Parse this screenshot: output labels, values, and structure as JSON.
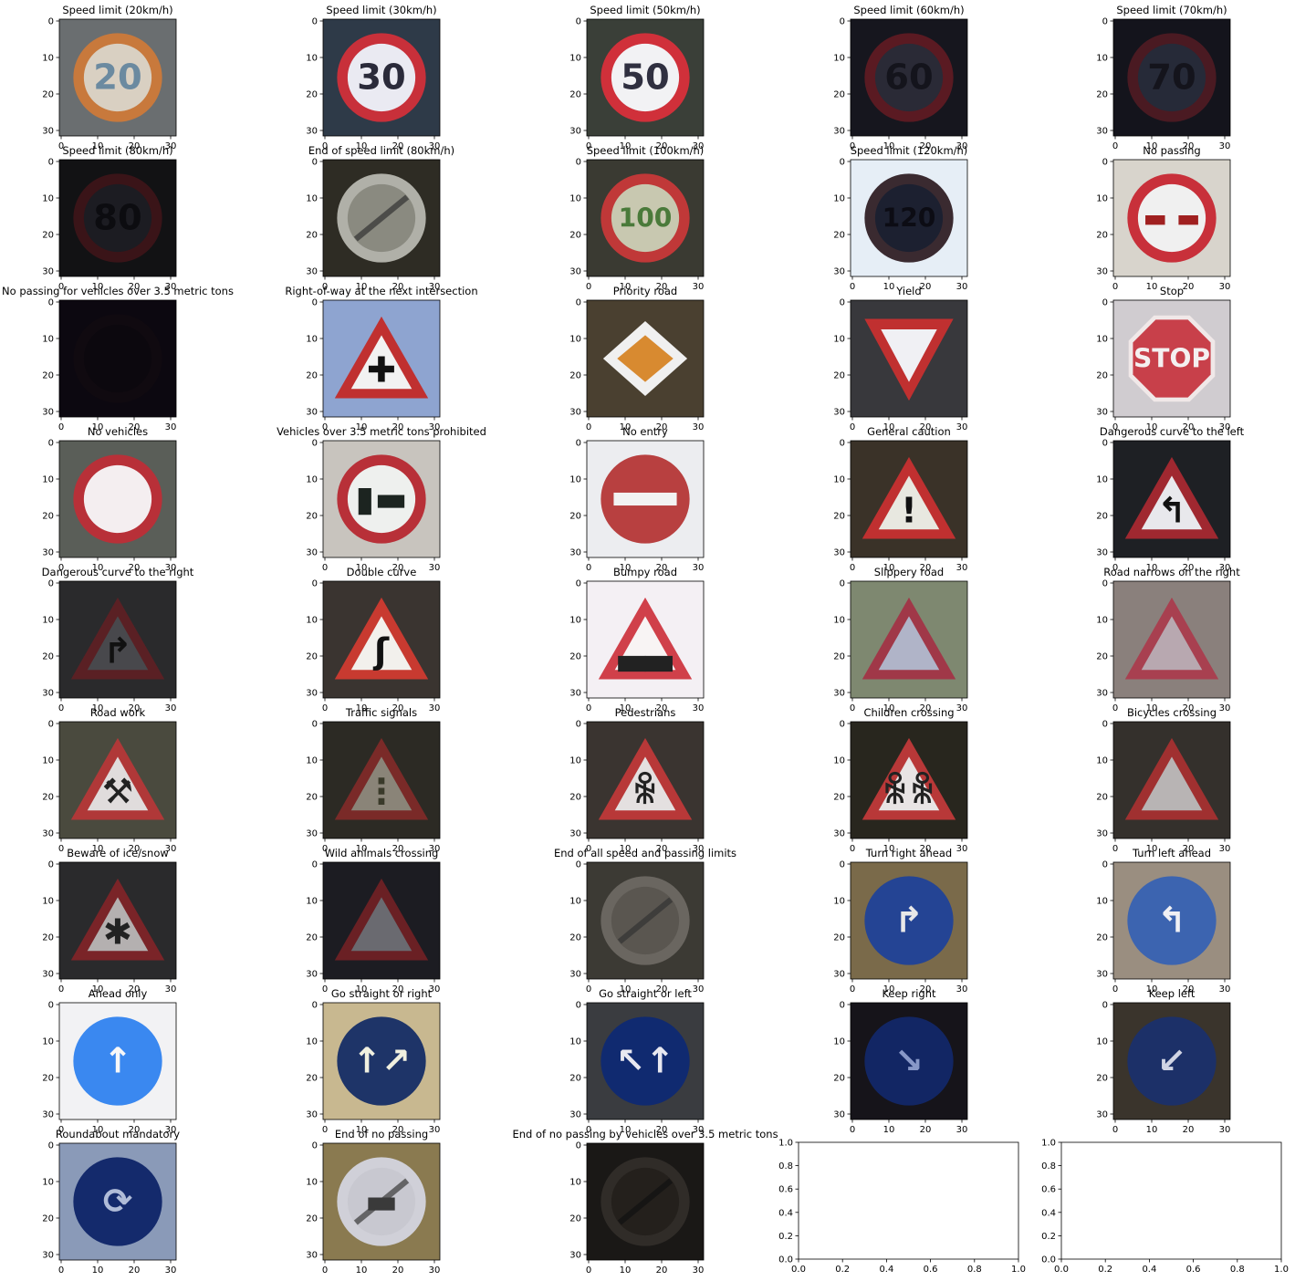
{
  "figure": {
    "type": "image_grid",
    "rows": 9,
    "cols": 5
  },
  "chart_data": {
    "type": "image_grid",
    "image_axis": {
      "x_ticks": [
        0,
        10,
        20,
        30
      ],
      "y_ticks": [
        0,
        10,
        20,
        30
      ],
      "xlim": [
        -0.5,
        31.5
      ],
      "ylim": [
        31.5,
        -0.5
      ]
    },
    "empty_axis": {
      "x_ticks": [
        "0.0",
        "0.2",
        "0.4",
        "0.6",
        "0.8",
        "1.0"
      ],
      "y_ticks": [
        "0.0",
        "0.2",
        "0.4",
        "0.6",
        "0.8",
        "1.0"
      ],
      "xlim": [
        0,
        1
      ],
      "ylim": [
        0,
        1
      ]
    },
    "panels": [
      {
        "title": "Speed limit (20km/h)",
        "shape": "circle",
        "ring": "#c8793c",
        "fill": "#d9d0c2",
        "text": "20",
        "textcolor": "#6b8aa0",
        "bg": "#6a6e70"
      },
      {
        "title": "Speed limit (30km/h)",
        "shape": "circle",
        "ring": "#c8303a",
        "fill": "#eaeaf2",
        "text": "30",
        "textcolor": "#2a2a3a",
        "bg": "#2e3a48"
      },
      {
        "title": "Speed limit (50km/h)",
        "shape": "circle",
        "ring": "#d0303a",
        "fill": "#f2f2f4",
        "text": "50",
        "textcolor": "#303040",
        "bg": "#3a3f38"
      },
      {
        "title": "Speed limit (60km/h)",
        "shape": "circle",
        "ring": "#5a1a22",
        "fill": "#2a2a36",
        "text": "60",
        "textcolor": "#14141c",
        "bg": "#16161e"
      },
      {
        "title": "Speed limit (70km/h)",
        "shape": "circle",
        "ring": "#4a1a22",
        "fill": "#262a38",
        "text": "70",
        "textcolor": "#14141c",
        "bg": "#14141c"
      },
      {
        "title": "Speed limit (80km/h)",
        "shape": "circle",
        "ring": "#3a1418",
        "fill": "#1c1c22",
        "text": "80",
        "textcolor": "#0c0c10",
        "bg": "#121214"
      },
      {
        "title": "End of speed limit (80km/h)",
        "shape": "endcircle",
        "ring": "#b0b0a8",
        "fill": "#8a8a80",
        "text": "",
        "textcolor": "#333",
        "bg": "#2e2c24"
      },
      {
        "title": "Speed limit (100km/h)",
        "shape": "circle",
        "ring": "#c03838",
        "fill": "#c8c8b0",
        "text": "100",
        "textcolor": "#4a7a3a",
        "bg": "#3a3a32"
      },
      {
        "title": "Speed limit (120km/h)",
        "shape": "circle",
        "ring": "#3a2a30",
        "fill": "#1c2030",
        "text": "120",
        "textcolor": "#0c0c14",
        "bg": "#e6eef6"
      },
      {
        "title": "No passing",
        "shape": "circle",
        "ring": "#c8303a",
        "fill": "#f0f0f0",
        "text": "▬ ▬",
        "textcolor": "#a02020",
        "bg": "#d8d4cc"
      },
      {
        "title": "No passing for vehicles over 3.5 metric tons",
        "shape": "circle",
        "ring": "#100a10",
        "fill": "#0c080e",
        "text": "",
        "textcolor": "#000",
        "bg": "#0c0810"
      },
      {
        "title": "Right-of-way at the next intersection",
        "shape": "triangle",
        "ring": "#c03030",
        "fill": "#f2f2f2",
        "text": "✚",
        "textcolor": "#111",
        "bg": "#8ea4d0"
      },
      {
        "title": "Priority road",
        "shape": "diamond",
        "ring": "#f0f0f0",
        "fill": "#d88a30",
        "text": "",
        "textcolor": "#000",
        "bg": "#4a4030"
      },
      {
        "title": "Yield",
        "shape": "invtriangle",
        "ring": "#c03030",
        "fill": "#f0f0f4",
        "text": "",
        "textcolor": "#000",
        "bg": "#38383c"
      },
      {
        "title": "Stop",
        "shape": "octagon",
        "ring": "#f0e8e8",
        "fill": "#c8404a",
        "text": "STOP",
        "textcolor": "#f4f0f0",
        "bg": "#d0ccd0"
      },
      {
        "title": "No vehicles",
        "shape": "circle",
        "ring": "#b83038",
        "fill": "#f4eef0",
        "text": "",
        "textcolor": "#000",
        "bg": "#5a5e58"
      },
      {
        "title": "Vehicles over 3.5 metric tons prohibited",
        "shape": "circle",
        "ring": "#b83038",
        "fill": "#eef0ee",
        "text": "▮▬",
        "textcolor": "#1c2420",
        "bg": "#c8c4be"
      },
      {
        "title": "No entry",
        "shape": "noentry",
        "ring": "#a83a3a",
        "fill": "#b84040",
        "text": "",
        "textcolor": "#fff",
        "bg": "#ecedf0"
      },
      {
        "title": "General caution",
        "shape": "triangle",
        "ring": "#c03030",
        "fill": "#e8e8e0",
        "text": "!",
        "textcolor": "#111",
        "bg": "#3a3228"
      },
      {
        "title": "Dangerous curve to the left",
        "shape": "triangle",
        "ring": "#a02830",
        "fill": "#e8e8ec",
        "text": "↰",
        "textcolor": "#111",
        "bg": "#1e2024"
      },
      {
        "title": "Dangerous curve to the right",
        "shape": "triangle",
        "ring": "#5a2024",
        "fill": "#48484c",
        "text": "↱",
        "textcolor": "#111",
        "bg": "#2a2a2c"
      },
      {
        "title": "Double curve",
        "shape": "triangle",
        "ring": "#c83a30",
        "fill": "#f2f0ec",
        "text": "ʃ",
        "textcolor": "#111",
        "bg": "#3a3430"
      },
      {
        "title": "Bumpy road",
        "shape": "triangle",
        "ring": "#d0404a",
        "fill": "#f8f4f4",
        "text": "▃▃",
        "textcolor": "#222",
        "bg": "#f4f0f4"
      },
      {
        "title": "Slippery road",
        "shape": "triangle",
        "ring": "#a03848",
        "fill": "#b0b4c8",
        "text": "",
        "textcolor": "#222",
        "bg": "#7e8870"
      },
      {
        "title": "Road narrows on the right",
        "shape": "triangle",
        "ring": "#a84050",
        "fill": "#b8a8b0",
        "text": "",
        "textcolor": "#222",
        "bg": "#8a807c"
      },
      {
        "title": "Road work",
        "shape": "triangle",
        "ring": "#b03838",
        "fill": "#e0dcdc",
        "text": "⚒",
        "textcolor": "#222",
        "bg": "#4a4a3e"
      },
      {
        "title": "Traffic signals",
        "shape": "triangle",
        "ring": "#7a2a28",
        "fill": "#8a8478",
        "text": "⋮",
        "textcolor": "#3a3a2a",
        "bg": "#2c2a24"
      },
      {
        "title": "Pedestrians",
        "shape": "triangle",
        "ring": "#b83838",
        "fill": "#e4e0e0",
        "text": "ꆜ",
        "textcolor": "#222",
        "bg": "#3a3430"
      },
      {
        "title": "Children crossing",
        "shape": "triangle",
        "ring": "#b83838",
        "fill": "#e8e4e4",
        "text": "ꆜꆜ",
        "textcolor": "#222",
        "bg": "#28261e"
      },
      {
        "title": "Bicycles crossing",
        "shape": "triangle",
        "ring": "#a03030",
        "fill": "#b8b4b4",
        "text": "",
        "textcolor": "#222",
        "bg": "#34302c"
      },
      {
        "title": "Beware of ice/snow",
        "shape": "triangle",
        "ring": "#7a2428",
        "fill": "#b4b0b0",
        "text": "✱",
        "textcolor": "#222",
        "bg": "#2a2a2c"
      },
      {
        "title": "Wild animals crossing",
        "shape": "triangle",
        "ring": "#6a2024",
        "fill": "#6a6a70",
        "text": "",
        "textcolor": "#222",
        "bg": "#1c1c22"
      },
      {
        "title": "End of all speed and passing limits",
        "shape": "endcircle",
        "ring": "#6a6660",
        "fill": "#5a5650",
        "text": "",
        "textcolor": "#333",
        "bg": "#3c3a34"
      },
      {
        "title": "Turn right ahead",
        "shape": "bluecircle",
        "ring": "#1e3c88",
        "fill": "#244494",
        "text": "↱",
        "textcolor": "#e8e8e8",
        "bg": "#7a6a4a"
      },
      {
        "title": "Turn left ahead",
        "shape": "bluecircle",
        "ring": "#3a5ea8",
        "fill": "#3c64b0",
        "text": "↰",
        "textcolor": "#f0f0f4",
        "bg": "#9a8e80"
      },
      {
        "title": "Ahead only",
        "shape": "bluecircle",
        "ring": "#3a88f0",
        "fill": "#3a88f0",
        "text": "↑",
        "textcolor": "#f8f8f8",
        "bg": "#f2f2f4"
      },
      {
        "title": "Go straight or right",
        "shape": "bluecircle",
        "ring": "#1c3060",
        "fill": "#1e3468",
        "text": "↑↗",
        "textcolor": "#f0f0e0",
        "bg": "#c8b890"
      },
      {
        "title": "Go straight or left",
        "shape": "bluecircle",
        "ring": "#102a70",
        "fill": "#102a70",
        "text": "↖↑",
        "textcolor": "#e8e8f0",
        "bg": "#3a3c40"
      },
      {
        "title": "Keep right",
        "shape": "bluecircle",
        "ring": "#0e1e58",
        "fill": "#122664",
        "text": "↘",
        "textcolor": "#8898c8",
        "bg": "#16141a"
      },
      {
        "title": "Keep left",
        "shape": "bluecircle",
        "ring": "#1a2c60",
        "fill": "#1c3068",
        "text": "↙",
        "textcolor": "#d0d4e4",
        "bg": "#3a342c"
      },
      {
        "title": "Roundabout mandatory",
        "shape": "bluecircle",
        "ring": "#122868",
        "fill": "#142a6c",
        "text": "⟳",
        "textcolor": "#b0bcd8",
        "bg": "#8a9ab8"
      },
      {
        "title": "End of no passing",
        "shape": "endcircle",
        "ring": "#d0d0d8",
        "fill": "#c8c8d0",
        "text": "▬",
        "textcolor": "#3a3a3a",
        "bg": "#8a7a50"
      },
      {
        "title": "End of no passing by vehicles over 3.5 metric tons",
        "shape": "endcircle",
        "ring": "#302c28",
        "fill": "#24201c",
        "text": "",
        "textcolor": "#111",
        "bg": "#1a1816"
      }
    ]
  }
}
